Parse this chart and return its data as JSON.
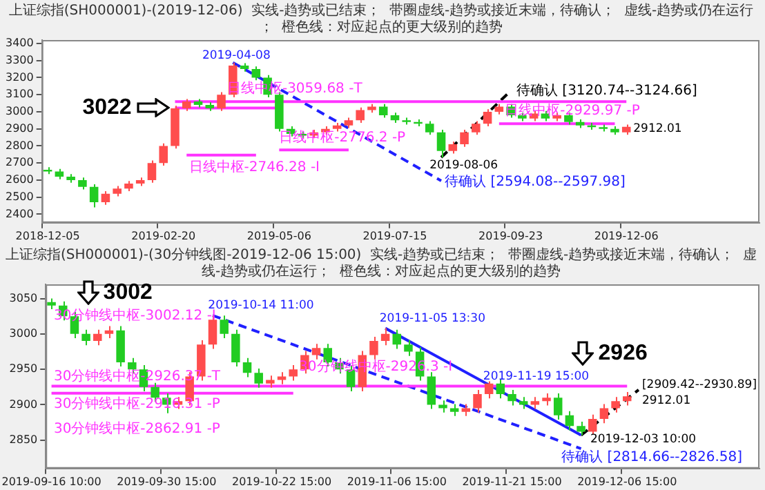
{
  "chart_data": [
    {
      "type": "candlestick",
      "title": "上证综指(SH000001)-(2019-12-06)  实线-趋势或已结束；  带圈虚线-趋势或接近末端，待确认；  虚线-趋势或仍在运行；  橙色线：对应起点的更大级别的趋势",
      "categories": [
        "2018-12-05",
        null,
        null,
        null,
        null,
        null,
        null,
        null,
        null,
        null,
        "2019-02-20",
        null,
        null,
        null,
        null,
        null,
        null,
        null,
        null,
        null,
        "2019-05-06",
        null,
        null,
        null,
        null,
        null,
        null,
        null,
        null,
        null,
        "2019-07-15",
        null,
        null,
        null,
        null,
        null,
        null,
        null,
        null,
        null,
        "2019-09-23",
        null,
        null,
        null,
        null,
        null,
        null,
        null,
        null,
        null,
        "2019-12-06",
        null,
        null,
        null,
        null,
        null,
        null,
        null,
        null,
        null,
        null,
        null
      ],
      "ohlc": [
        [
          2660,
          2675,
          2635,
          2650
        ],
        [
          2650,
          2665,
          2605,
          2620
        ],
        [
          2620,
          2635,
          2585,
          2600
        ],
        [
          2600,
          2615,
          2545,
          2560
        ],
        [
          2560,
          2575,
          2440,
          2470
        ],
        [
          2470,
          2535,
          2455,
          2520
        ],
        [
          2520,
          2565,
          2505,
          2550
        ],
        [
          2550,
          2595,
          2535,
          2580
        ],
        [
          2580,
          2615,
          2565,
          2600
        ],
        [
          2600,
          2715,
          2585,
          2700
        ],
        [
          2700,
          2815,
          2685,
          2800
        ],
        [
          2800,
          3035,
          2785,
          3020
        ],
        [
          3020,
          3075,
          3005,
          3060
        ],
        [
          3060,
          3075,
          3025,
          3040
        ],
        [
          3040,
          3055,
          3005,
          3020
        ],
        [
          3020,
          3115,
          3005,
          3100
        ],
        [
          3100,
          3288,
          3085,
          3270
        ],
        [
          3270,
          3285,
          3235,
          3250
        ],
        [
          3250,
          3265,
          3185,
          3200
        ],
        [
          3200,
          3215,
          3085,
          3100
        ],
        [
          3100,
          3115,
          2885,
          2900
        ],
        [
          2900,
          2915,
          2855,
          2870
        ],
        [
          2870,
          2885,
          2845,
          2860
        ],
        [
          2860,
          2895,
          2845,
          2880
        ],
        [
          2880,
          2915,
          2865,
          2900
        ],
        [
          2900,
          2935,
          2885,
          2920
        ],
        [
          2920,
          2965,
          2905,
          2950
        ],
        [
          2950,
          3025,
          2935,
          3010
        ],
        [
          3010,
          3045,
          2995,
          3030
        ],
        [
          3030,
          3045,
          2965,
          2980
        ],
        [
          2980,
          2995,
          2935,
          2950
        ],
        [
          2950,
          2965,
          2925,
          2940
        ],
        [
          2940,
          2955,
          2915,
          2930
        ],
        [
          2930,
          2945,
          2865,
          2880
        ],
        [
          2880,
          2895,
          2733,
          2770
        ],
        [
          2770,
          2825,
          2755,
          2810
        ],
        [
          2810,
          2895,
          2795,
          2880
        ],
        [
          2880,
          2945,
          2865,
          2930
        ],
        [
          2930,
          3015,
          2915,
          3000
        ],
        [
          3000,
          3045,
          2985,
          3030
        ],
        [
          3030,
          3045,
          2965,
          2980
        ],
        [
          2980,
          2995,
          2945,
          2960
        ],
        [
          2960,
          3005,
          2945,
          2990
        ],
        [
          2990,
          3005,
          2945,
          2960
        ],
        [
          2960,
          2995,
          2945,
          2980
        ],
        [
          2980,
          2995,
          2925,
          2940
        ],
        [
          2940,
          2955,
          2905,
          2920
        ],
        [
          2920,
          2935,
          2895,
          2910
        ],
        [
          2910,
          2925,
          2885,
          2900
        ],
        [
          2900,
          2915,
          2865,
          2880
        ],
        [
          2880,
          2925,
          2865,
          2912
        ],
        null,
        null,
        null,
        null,
        null,
        null,
        null,
        null,
        null,
        null,
        null
      ],
      "colors": [
        "#22cc22",
        "#22cc22",
        "#22cc22",
        "#22cc22",
        "#22cc22",
        "#ff4d4d",
        "#ff4d4d",
        "#ff4d4d",
        "#ff4d4d",
        "#ff4d4d",
        "#ff4d4d",
        "#ff4d4d",
        "#ff4d4d",
        "#22cc22",
        "#22cc22",
        "#ff4d4d",
        "#ff4d4d",
        "#22cc22",
        "#22cc22",
        "#22cc22",
        "#22cc22",
        "#22cc22",
        "#22cc22",
        "#ff4d4d",
        "#ff4d4d",
        "#ff4d4d",
        "#ff4d4d",
        "#ff4d4d",
        "#ff4d4d",
        "#22cc22",
        "#22cc22",
        "#22cc22",
        "#22cc22",
        "#22cc22",
        "#22cc22",
        "#ff4d4d",
        "#ff4d4d",
        "#ff4d4d",
        "#ff4d4d",
        "#ff4d4d",
        "#22cc22",
        "#22cc22",
        "#ff4d4d",
        "#22cc22",
        "#ff4d4d",
        "#22cc22",
        "#22cc22",
        "#22cc22",
        "#22cc22",
        "#22cc22",
        "#ff4d4d",
        null,
        null,
        null,
        null,
        null,
        null,
        null,
        null,
        null,
        null,
        null
      ],
      "series": [
        {
          "type": "line",
          "color": "#ff33ff",
          "line_style": "solid",
          "values": [
            null,
            null,
            null,
            null,
            null,
            null,
            null,
            null,
            null,
            null,
            null,
            3059.68,
            null,
            null,
            null,
            null,
            null,
            null,
            null,
            null,
            null,
            null,
            null,
            null,
            null,
            null,
            null,
            null,
            null,
            null,
            null,
            null,
            null,
            null,
            null,
            null,
            null,
            null,
            null,
            null,
            null,
            null,
            null,
            null,
            null,
            null,
            null,
            null,
            null,
            null,
            3059.68,
            null,
            null,
            null,
            null,
            null,
            null,
            null,
            null,
            null,
            null,
            null
          ]
        },
        {
          "type": "line",
          "color": "#ff33ff",
          "line_style": "solid",
          "values": [
            null,
            null,
            null,
            null,
            null,
            null,
            null,
            null,
            null,
            null,
            null,
            3022,
            null,
            null,
            null,
            null,
            null,
            null,
            null,
            null,
            3022,
            null,
            null,
            null,
            null,
            null,
            null,
            null,
            null,
            null,
            null,
            null,
            null,
            null,
            null,
            null,
            null,
            null,
            null,
            null,
            null,
            null,
            null,
            null,
            null,
            null,
            null,
            null,
            null,
            null,
            null,
            null,
            null,
            null,
            null,
            null,
            null,
            null,
            null,
            null,
            null,
            null
          ]
        },
        {
          "type": "line",
          "color": "#ff33ff",
          "line_style": "solid",
          "values": [
            null,
            null,
            null,
            null,
            null,
            null,
            null,
            null,
            null,
            null,
            null,
            null,
            2746.28,
            null,
            null,
            null,
            null,
            null,
            2746.28,
            null,
            null,
            null,
            null,
            null,
            null,
            null,
            null,
            null,
            null,
            null,
            null,
            null,
            null,
            null,
            null,
            null,
            null,
            null,
            null,
            null,
            null,
            null,
            null,
            null,
            null,
            null,
            null,
            null,
            null,
            null,
            null,
            null,
            null,
            null,
            null,
            null,
            null,
            null,
            null,
            null,
            null,
            null
          ]
        },
        {
          "type": "line",
          "color": "#ff33ff",
          "line_style": "solid",
          "values": [
            null,
            null,
            null,
            null,
            null,
            null,
            null,
            null,
            null,
            null,
            null,
            null,
            null,
            null,
            null,
            null,
            null,
            null,
            null,
            null,
            2776.2,
            null,
            null,
            null,
            null,
            null,
            2776.2,
            null,
            null,
            null,
            null,
            null,
            null,
            null,
            null,
            null,
            null,
            null,
            null,
            null,
            null,
            null,
            null,
            null,
            null,
            null,
            null,
            null,
            null,
            null,
            null,
            null,
            null,
            null,
            null,
            null,
            null,
            null,
            null,
            null,
            null,
            null
          ]
        },
        {
          "type": "line",
          "color": "#ff33ff",
          "line_style": "solid",
          "values": [
            null,
            null,
            null,
            null,
            null,
            null,
            null,
            null,
            null,
            null,
            null,
            null,
            null,
            null,
            null,
            null,
            null,
            null,
            null,
            null,
            null,
            null,
            null,
            null,
            null,
            null,
            null,
            null,
            null,
            null,
            null,
            null,
            null,
            null,
            null,
            null,
            null,
            null,
            null,
            2929.97,
            null,
            null,
            null,
            null,
            null,
            null,
            null,
            null,
            null,
            2929.97,
            null,
            null,
            null,
            null,
            null,
            null,
            null,
            null,
            null,
            null,
            null,
            null
          ]
        },
        {
          "type": "line",
          "color": "#2020ff",
          "line_style": "dashed",
          "values": [
            null,
            null,
            null,
            null,
            null,
            null,
            null,
            null,
            null,
            null,
            null,
            null,
            null,
            null,
            null,
            null,
            3288,
            null,
            null,
            null,
            null,
            null,
            null,
            null,
            null,
            null,
            null,
            null,
            null,
            null,
            null,
            null,
            null,
            null,
            2596,
            null,
            null,
            null,
            null,
            null,
            null,
            null,
            null,
            null,
            null,
            null,
            null,
            null,
            null,
            null,
            null,
            null,
            null,
            null,
            null,
            null,
            null,
            null,
            null,
            null,
            null,
            null
          ]
        },
        {
          "type": "line",
          "color": "#000000",
          "line_style": "dashed",
          "values": [
            null,
            null,
            null,
            null,
            null,
            null,
            null,
            null,
            null,
            null,
            null,
            null,
            null,
            null,
            null,
            null,
            null,
            null,
            null,
            null,
            null,
            null,
            null,
            null,
            null,
            null,
            null,
            null,
            null,
            null,
            null,
            null,
            null,
            null,
            2733,
            null,
            null,
            null,
            null,
            null,
            3122,
            null,
            null,
            null,
            null,
            null,
            null,
            null,
            null,
            null,
            null,
            null,
            null,
            null,
            null,
            null,
            null,
            null,
            null,
            null,
            null,
            null
          ]
        }
      ],
      "ylim": [
        2350,
        3420
      ],
      "yticks": [
        2400,
        2500,
        2600,
        2700,
        2800,
        2900,
        3000,
        3100,
        3200,
        3300,
        3400
      ],
      "annotations": [
        "3022",
        "2019-04-08",
        "待确认 [3120.74--3124.66]",
        "2019-08-06",
        "待确认 [2594.08--2597.98]",
        "2912.01",
        "日线中枢-3059.68 -T",
        "日线中枢-2746.28 -I",
        "日线中枢-2776.2 -P",
        "日线中枢-2929.97 -P"
      ]
    },
    {
      "type": "candlestick",
      "title": "上证综指(SH000001)-(30分钟线图-2019-12-06 15:00)  实线-趋势或已结束；  带圈虚线-趋势或接近末端，待确认；  虚线-趋势或仍在运行；  橙色线：对应起点的更大级别的趋势",
      "categories": [
        "2019-09-16 10:00",
        null,
        null,
        null,
        null,
        null,
        null,
        null,
        null,
        null,
        "2019-09-30 15:00",
        null,
        null,
        null,
        null,
        null,
        null,
        null,
        null,
        null,
        "2019-10-22 15:00",
        null,
        null,
        null,
        null,
        null,
        null,
        null,
        null,
        null,
        "2019-11-06 15:00",
        null,
        null,
        null,
        null,
        null,
        null,
        null,
        null,
        null,
        "2019-11-21 15:00",
        null,
        null,
        null,
        null,
        null,
        null,
        null,
        null,
        null,
        "2019-12-06 15:00",
        null,
        null,
        null,
        null,
        null,
        null,
        null,
        null,
        null,
        null,
        null
      ],
      "ohlc": [
        [
          3045,
          3050,
          3035,
          3040
        ],
        [
          3040,
          3046,
          3019,
          3025
        ],
        [
          3025,
          3031,
          2994,
          3000
        ],
        [
          3000,
          3006,
          2984,
          2990
        ],
        [
          2990,
          3006,
          2984,
          3000
        ],
        [
          3000,
          3011,
          2994,
          3005
        ],
        [
          3005,
          3011,
          2954,
          2960
        ],
        [
          2960,
          2966,
          2944,
          2950
        ],
        [
          2950,
          2956,
          2919,
          2925
        ],
        [
          2925,
          2931,
          2904,
          2910
        ],
        [
          2910,
          2916,
          2888,
          2900
        ],
        [
          2900,
          2911,
          2894,
          2905
        ],
        [
          2905,
          2946,
          2899,
          2940
        ],
        [
          2940,
          2991,
          2934,
          2985
        ],
        [
          2985,
          3026,
          2979,
          3020
        ],
        [
          3020,
          3026,
          2994,
          3000
        ],
        [
          3000,
          3006,
          2954,
          2960
        ],
        [
          2960,
          2966,
          2939,
          2945
        ],
        [
          2945,
          2951,
          2924,
          2930
        ],
        [
          2930,
          2941,
          2924,
          2935
        ],
        [
          2935,
          2946,
          2929,
          2940
        ],
        [
          2940,
          2956,
          2934,
          2950
        ],
        [
          2950,
          2976,
          2944,
          2970
        ],
        [
          2970,
          2986,
          2964,
          2980
        ],
        [
          2980,
          2986,
          2954,
          2960
        ],
        [
          2960,
          2966,
          2944,
          2950
        ],
        [
          2950,
          2956,
          2919,
          2925
        ],
        [
          2925,
          2976,
          2919,
          2970
        ],
        [
          2970,
          2996,
          2964,
          2990
        ],
        [
          2990,
          3008,
          2984,
          3000
        ],
        [
          3000,
          3006,
          2979,
          2985
        ],
        [
          2985,
          2991,
          2969,
          2975
        ],
        [
          2975,
          2981,
          2934,
          2940
        ],
        [
          2940,
          2946,
          2894,
          2900
        ],
        [
          2900,
          2906,
          2889,
          2895
        ],
        [
          2895,
          2901,
          2884,
          2890
        ],
        [
          2890,
          2901,
          2884,
          2895
        ],
        [
          2895,
          2921,
          2889,
          2915
        ],
        [
          2915,
          2933,
          2909,
          2930
        ],
        [
          2930,
          2936,
          2909,
          2915
        ],
        [
          2915,
          2921,
          2899,
          2905
        ],
        [
          2905,
          2911,
          2894,
          2900
        ],
        [
          2900,
          2911,
          2894,
          2905
        ],
        [
          2905,
          2916,
          2899,
          2910
        ],
        [
          2910,
          2916,
          2879,
          2885
        ],
        [
          2885,
          2891,
          2864,
          2870
        ],
        [
          2870,
          2876,
          2857,
          2862
        ],
        [
          2862,
          2886,
          2858,
          2880
        ],
        [
          2880,
          2901,
          2874,
          2895
        ],
        [
          2895,
          2911,
          2889,
          2905
        ],
        [
          2905,
          2918,
          2899,
          2912
        ],
        null,
        null,
        null,
        null,
        null,
        null,
        null,
        null,
        null,
        null,
        null
      ],
      "colors": [
        "#22cc22",
        "#22cc22",
        "#22cc22",
        "#22cc22",
        "#ff4d4d",
        "#ff4d4d",
        "#22cc22",
        "#22cc22",
        "#22cc22",
        "#22cc22",
        "#22cc22",
        "#ff4d4d",
        "#ff4d4d",
        "#ff4d4d",
        "#ff4d4d",
        "#22cc22",
        "#22cc22",
        "#22cc22",
        "#22cc22",
        "#ff4d4d",
        "#ff4d4d",
        "#ff4d4d",
        "#ff4d4d",
        "#ff4d4d",
        "#22cc22",
        "#22cc22",
        "#22cc22",
        "#ff4d4d",
        "#ff4d4d",
        "#ff4d4d",
        "#22cc22",
        "#22cc22",
        "#22cc22",
        "#22cc22",
        "#22cc22",
        "#22cc22",
        "#ff4d4d",
        "#ff4d4d",
        "#ff4d4d",
        "#22cc22",
        "#22cc22",
        "#22cc22",
        "#ff4d4d",
        "#ff4d4d",
        "#22cc22",
        "#22cc22",
        "#22cc22",
        "#ff4d4d",
        "#ff4d4d",
        "#ff4d4d",
        "#ff4d4d",
        null,
        null,
        null,
        null,
        null,
        null,
        null,
        null,
        null,
        null,
        null
      ],
      "series": [
        {
          "type": "line",
          "color": "#ff33ff",
          "line_style": "solid",
          "values": [
            2926.37,
            null,
            null,
            null,
            null,
            null,
            null,
            null,
            null,
            null,
            null,
            null,
            null,
            null,
            null,
            null,
            null,
            null,
            null,
            null,
            null,
            null,
            null,
            null,
            null,
            null,
            null,
            null,
            null,
            null,
            null,
            null,
            null,
            null,
            null,
            null,
            null,
            null,
            null,
            null,
            null,
            null,
            null,
            null,
            null,
            null,
            null,
            null,
            null,
            null,
            2926.37,
            null,
            null,
            null,
            null,
            null,
            null,
            null,
            null,
            null,
            null,
            null
          ]
        },
        {
          "type": "line",
          "color": "#ff33ff",
          "line_style": "solid",
          "values": [
            2916.31,
            null,
            null,
            null,
            null,
            null,
            null,
            null,
            null,
            null,
            null,
            null,
            null,
            null,
            null,
            null,
            null,
            null,
            null,
            null,
            null,
            2916.31,
            null,
            null,
            null,
            null,
            null,
            null,
            null,
            null,
            null,
            null,
            null,
            null,
            null,
            null,
            null,
            null,
            null,
            null,
            null,
            null,
            null,
            null,
            null,
            null,
            null,
            null,
            null,
            null,
            null,
            null,
            null,
            null,
            null,
            null,
            null,
            null,
            null,
            null,
            null,
            null
          ]
        },
        {
          "type": "line",
          "color": "#2020ff",
          "line_style": "dashed",
          "values": [
            null,
            null,
            null,
            null,
            null,
            null,
            null,
            null,
            null,
            null,
            null,
            null,
            null,
            null,
            3026,
            null,
            null,
            null,
            null,
            null,
            null,
            null,
            null,
            null,
            null,
            null,
            null,
            null,
            null,
            null,
            null,
            null,
            null,
            null,
            null,
            null,
            null,
            null,
            null,
            null,
            null,
            null,
            null,
            null,
            null,
            null,
            2838,
            null,
            null,
            null,
            null,
            null,
            null,
            null,
            null,
            null,
            null,
            null,
            null,
            null,
            null,
            null
          ]
        },
        {
          "type": "line",
          "color": "#2020ff",
          "line_style": "solid",
          "values": [
            null,
            null,
            null,
            null,
            null,
            null,
            null,
            null,
            null,
            null,
            null,
            null,
            null,
            null,
            null,
            null,
            null,
            null,
            null,
            null,
            null,
            null,
            null,
            null,
            null,
            null,
            null,
            null,
            null,
            3008,
            null,
            null,
            null,
            null,
            null,
            null,
            null,
            null,
            null,
            null,
            null,
            null,
            null,
            null,
            null,
            null,
            2857,
            null,
            null,
            null,
            null,
            null,
            null,
            null,
            null,
            null,
            null,
            null,
            null,
            null,
            null,
            null
          ]
        },
        {
          "type": "line",
          "color": "#000000",
          "line_style": "dashed",
          "values": [
            null,
            null,
            null,
            null,
            null,
            null,
            null,
            null,
            null,
            null,
            null,
            null,
            null,
            null,
            null,
            null,
            null,
            null,
            null,
            null,
            null,
            null,
            null,
            null,
            null,
            null,
            null,
            null,
            null,
            null,
            null,
            null,
            null,
            null,
            null,
            null,
            null,
            null,
            null,
            null,
            null,
            null,
            null,
            null,
            null,
            null,
            2857,
            null,
            null,
            null,
            null,
            2921,
            null,
            null,
            null,
            null,
            null,
            null,
            null,
            null,
            null,
            null
          ]
        }
      ],
      "ylim": [
        2810,
        3070
      ],
      "yticks": [
        2850,
        2900,
        2950,
        3000,
        3050
      ],
      "annotations": [
        "3002",
        "30分钟线中枢-3002.12 -I",
        "2019-10-14 11:00",
        "2019-11-05 13:30",
        "30分钟线中枢-2926.37 -T",
        "30分钟线中枢-2916.31 -P",
        "30分钟线中枢-2926.3 -I",
        "2019-11-19 15:00",
        "2926",
        "[2909.42--2930.89]",
        "2912.01",
        "30分钟线中枢-2862.91 -P",
        "2019-12-03 10:00",
        "待确认 [2814.66--2826.58]"
      ]
    }
  ]
}
